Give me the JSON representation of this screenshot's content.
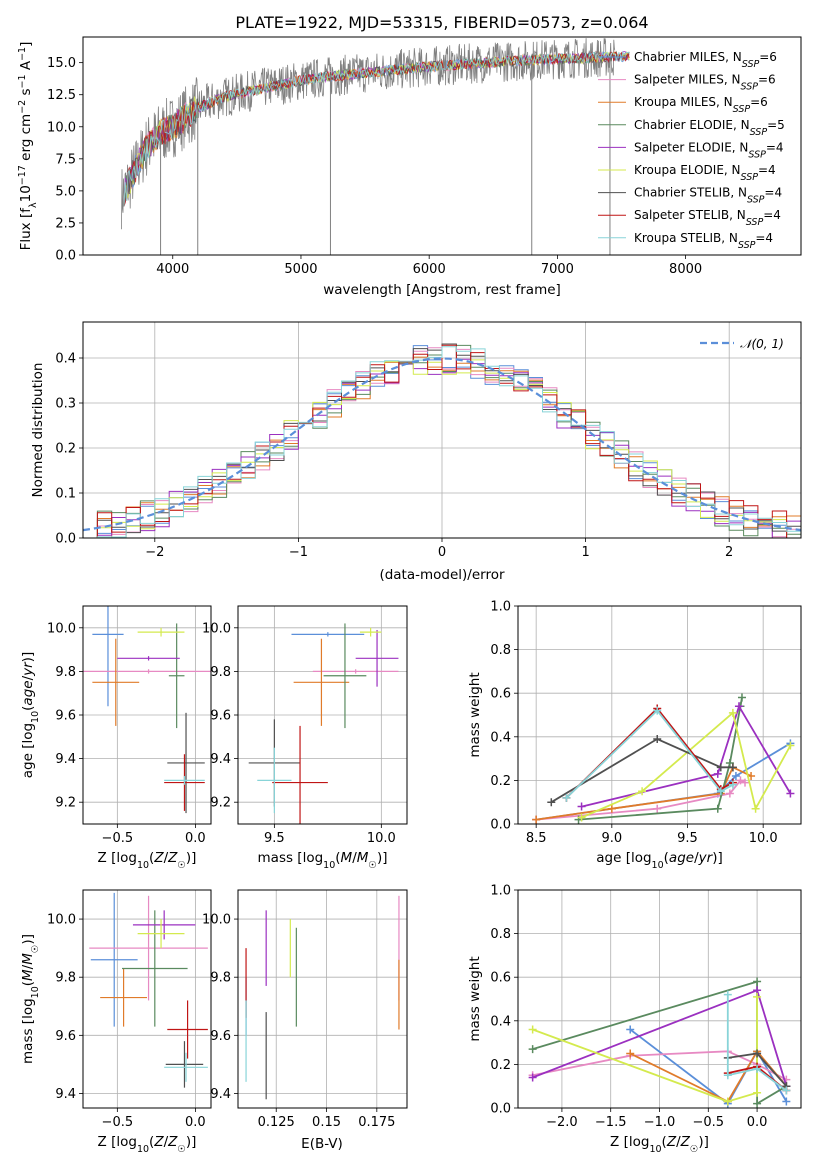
{
  "title": "PLATE=1922, MJD=53315, FIBERID=0573, z=0.064",
  "colors": {
    "Chabrier MILES": "#5b8fd9",
    "Salpeter MILES": "#e78ac3",
    "Kroupa MILES": "#e07b2a",
    "Chabrier ELODIE": "#5a8a5f",
    "Salpeter ELODIE": "#9b30c0",
    "Kroupa ELODIE": "#d4ea4e",
    "Chabrier STELIB": "#505050",
    "Salpeter STELIB": "#c01515",
    "Kroupa STELIB": "#88d4d8",
    "data": "#808080",
    "normal": "#5b8fd9"
  },
  "chart_data": [
    {
      "type": "line",
      "name": "spectrum",
      "title": "PLATE=1922, MJD=53315, FIBERID=0573, z=0.064",
      "xlabel": "wavelength [Angstrom, rest frame]",
      "ylabel_parts": [
        "Flux [f",
        "λ",
        "10",
        "−17",
        " erg cm",
        "−2",
        " s",
        "−1",
        " A",
        "−1",
        "]"
      ],
      "xlim": [
        3300,
        8900
      ],
      "ylim": [
        0,
        17
      ],
      "xticks": [
        4000,
        5000,
        6000,
        7000,
        8000
      ],
      "yticks": [
        0.0,
        2.5,
        5.0,
        7.5,
        10.0,
        12.5,
        15.0
      ],
      "legend_location": "right",
      "legend": [
        {
          "name": "Chabrier MILES",
          "nssp": "6"
        },
        {
          "name": "Salpeter MILES",
          "nssp": "6"
        },
        {
          "name": "Kroupa MILES",
          "nssp": "6"
        },
        {
          "name": "Chabrier ELODIE",
          "nssp": "5"
        },
        {
          "name": "Salpeter ELODIE",
          "nssp": "4"
        },
        {
          "name": "Kroupa ELODIE",
          "nssp": "4"
        },
        {
          "name": "Chabrier STELIB",
          "nssp": "4"
        },
        {
          "name": "Salpeter STELIB",
          "nssp": "4"
        },
        {
          "name": "Kroupa STELIB",
          "nssp": "4"
        }
      ],
      "continuum": {
        "x": [
          3600,
          3700,
          3800,
          3900,
          4000,
          4100,
          4200,
          4400,
          4600,
          4800,
          5000,
          5200,
          5500,
          5800,
          6000,
          6300,
          6600,
          7000,
          7300,
          7600
        ],
        "y": [
          4.5,
          6.5,
          8.5,
          9.5,
          10.0,
          10.8,
          11.5,
          12.3,
          12.8,
          13.2,
          13.6,
          13.9,
          14.2,
          14.5,
          14.7,
          14.9,
          15.1,
          15.3,
          15.4,
          15.5
        ]
      },
      "data_extent": [
        3600,
        7450
      ],
      "model_extent": [
        3620,
        7560
      ],
      "spikes": [
        {
          "x": 3905,
          "to": 0
        },
        {
          "x": 4195,
          "to": 0
        },
        {
          "x": 5230,
          "to": 0
        },
        {
          "x": 6800,
          "to": 0
        },
        {
          "x": 7410,
          "to": 0
        }
      ]
    },
    {
      "type": "histogram",
      "name": "residuals",
      "xlabel": "(data-model)/error",
      "ylabel": "Normed distribution",
      "xlim": [
        -2.5,
        2.5
      ],
      "ylim": [
        0,
        0.48
      ],
      "xticks": [
        -2,
        -1,
        0,
        1,
        2
      ],
      "xticklabels": [
        "−2",
        "−1",
        "0",
        "1",
        "2"
      ],
      "yticks": [
        0.0,
        0.1,
        0.2,
        0.3,
        0.4
      ],
      "legend_label": "𝒩(0, 1)",
      "legend_location": "top-right",
      "bin_width": 0.1,
      "normal_sigma": 1.0,
      "series_count": 9
    },
    {
      "type": "scatter",
      "name": "age-vs-Z",
      "xlabel": "Z [log10(Z/Z☉)]",
      "ylabel": "age  [log10(age/yr)]",
      "xlim": [
        -0.72,
        0.1
      ],
      "ylim": [
        9.1,
        10.1
      ],
      "xticks": [
        -0.5,
        0.0
      ],
      "yticks": [
        9.2,
        9.4,
        9.6,
        9.8,
        10.0
      ],
      "points": [
        {
          "series": "Chabrier MILES",
          "x": -0.56,
          "y": 9.97,
          "xerr": 0.1,
          "yerr": 0.33
        },
        {
          "series": "Salpeter MILES",
          "x": -0.3,
          "y": 9.8,
          "xerr": 0.42,
          "yerr": 0.01
        },
        {
          "series": "Kroupa MILES",
          "x": -0.51,
          "y": 9.75,
          "xerr": 0.15,
          "yerr": 0.2
        },
        {
          "series": "Chabrier ELODIE",
          "x": -0.12,
          "y": 9.78,
          "xerr": 0.05,
          "yerr": 0.24
        },
        {
          "series": "Salpeter ELODIE",
          "x": -0.3,
          "y": 9.86,
          "xerr": 0.2,
          "yerr": 0.01
        },
        {
          "series": "Kroupa ELODIE",
          "x": -0.22,
          "y": 9.98,
          "xerr": 0.15,
          "yerr": 0.02
        },
        {
          "series": "Chabrier STELIB",
          "x": -0.06,
          "y": 9.38,
          "xerr": 0.12,
          "yerr": 0.23
        },
        {
          "series": "Salpeter STELIB",
          "x": -0.07,
          "y": 9.29,
          "xerr": 0.13,
          "yerr": 0.13
        },
        {
          "series": "Kroupa STELIB",
          "x": -0.07,
          "y": 9.3,
          "xerr": 0.13,
          "yerr": 0.02
        }
      ]
    },
    {
      "type": "scatter",
      "name": "age-vs-mass",
      "xlabel": "mass [log10(M/M☉)]",
      "ylabel": "",
      "xlim": [
        9.33,
        10.12
      ],
      "ylim": [
        9.1,
        10.1
      ],
      "xticks": [
        9.5,
        10.0
      ],
      "yticks": [
        9.2,
        9.4,
        9.6,
        9.8,
        10.0
      ],
      "points": [
        {
          "series": "Chabrier MILES",
          "x": 9.75,
          "y": 9.97,
          "xerr": 0.17,
          "yerr": 0.01
        },
        {
          "series": "Salpeter MILES",
          "x": 9.88,
          "y": 9.8,
          "xerr": 0.2,
          "yerr": 0.01
        },
        {
          "series": "Kroupa MILES",
          "x": 9.72,
          "y": 9.75,
          "xerr": 0.13,
          "yerr": 0.2
        },
        {
          "series": "Chabrier ELODIE",
          "x": 9.83,
          "y": 9.78,
          "xerr": 0.1,
          "yerr": 0.24
        },
        {
          "series": "Salpeter ELODIE",
          "x": 9.98,
          "y": 9.86,
          "xerr": 0.1,
          "yerr": 0.13
        },
        {
          "series": "Kroupa ELODIE",
          "x": 9.95,
          "y": 9.98,
          "xerr": 0.05,
          "yerr": 0.02
        },
        {
          "series": "Chabrier STELIB",
          "x": 9.5,
          "y": 9.38,
          "xerr": 0.12,
          "yerr": 0.2
        },
        {
          "series": "Salpeter STELIB",
          "x": 9.62,
          "y": 9.29,
          "xerr": 0.13,
          "yerr": 0.26
        },
        {
          "series": "Kroupa STELIB",
          "x": 9.5,
          "y": 9.3,
          "xerr": 0.08,
          "yerr": 0.15
        }
      ]
    },
    {
      "type": "line",
      "name": "mass-weight-vs-age",
      "xlabel": "age  [log10(age/yr)]",
      "ylabel": "mass weight",
      "xlim": [
        8.38,
        10.25
      ],
      "ylim": [
        0,
        1.0
      ],
      "xticks": [
        8.5,
        9.0,
        9.5,
        10.0
      ],
      "yticks": [
        0.0,
        0.2,
        0.4,
        0.6,
        0.8,
        1.0
      ],
      "series": [
        {
          "name": "Chabrier MILES",
          "x": [
            8.5,
            9.7,
            9.82,
            10.18
          ],
          "y": [
            0.02,
            0.14,
            0.22,
            0.37
          ]
        },
        {
          "name": "Salpeter MILES",
          "x": [
            8.5,
            9.3,
            9.78,
            9.85,
            9.88
          ],
          "y": [
            0.02,
            0.07,
            0.14,
            0.2,
            0.19
          ]
        },
        {
          "name": "Kroupa MILES",
          "x": [
            8.5,
            9.0,
            9.72,
            9.8,
            9.92
          ],
          "y": [
            0.02,
            0.07,
            0.14,
            0.26,
            0.22
          ]
        },
        {
          "name": "Chabrier ELODIE",
          "x": [
            8.78,
            9.7,
            9.78,
            9.86,
            9.85
          ],
          "y": [
            0.02,
            0.07,
            0.28,
            0.58,
            0.54
          ]
        },
        {
          "name": "Salpeter ELODIE",
          "x": [
            8.8,
            9.7,
            9.84,
            10.18
          ],
          "y": [
            0.08,
            0.23,
            0.54,
            0.14
          ]
        },
        {
          "name": "Kroupa ELODIE",
          "x": [
            8.8,
            9.2,
            9.8,
            9.95,
            10.18
          ],
          "y": [
            0.03,
            0.15,
            0.51,
            0.07,
            0.36
          ]
        },
        {
          "name": "Chabrier STELIB",
          "x": [
            8.6,
            9.3,
            9.72,
            9.8
          ],
          "y": [
            0.1,
            0.39,
            0.26,
            0.26
          ]
        },
        {
          "name": "Salpeter STELIB",
          "x": [
            8.7,
            9.3,
            9.72,
            9.8
          ],
          "y": [
            0.12,
            0.53,
            0.16,
            0.19
          ]
        },
        {
          "name": "Kroupa STELIB",
          "x": [
            8.7,
            9.3,
            9.72,
            9.8
          ],
          "y": [
            0.12,
            0.52,
            0.15,
            0.18
          ]
        }
      ]
    },
    {
      "type": "scatter",
      "name": "mass-vs-Z",
      "xlabel": "Z [log10(Z/Z☉)]",
      "ylabel": "mass [log10(M/M☉)]",
      "xlim": [
        -0.72,
        0.1
      ],
      "ylim": [
        9.35,
        10.1
      ],
      "xticks": [
        -0.5,
        0.0
      ],
      "yticks": [
        9.4,
        9.6,
        9.8,
        10.0
      ],
      "points": [
        {
          "series": "Chabrier MILES",
          "x": -0.52,
          "y": 9.86,
          "xerr": 0.15,
          "yerr": 0.23
        },
        {
          "series": "Salpeter MILES",
          "x": -0.3,
          "y": 9.9,
          "xerr": 0.38,
          "yerr": 0.18
        },
        {
          "series": "Kroupa MILES",
          "x": -0.46,
          "y": 9.73,
          "xerr": 0.15,
          "yerr": 0.1
        },
        {
          "series": "Chabrier ELODIE",
          "x": -0.26,
          "y": 9.83,
          "xerr": 0.21,
          "yerr": 0.2
        },
        {
          "series": "Salpeter ELODIE",
          "x": -0.2,
          "y": 9.98,
          "xerr": 0.2,
          "yerr": 0.05
        },
        {
          "series": "Kroupa ELODIE",
          "x": -0.22,
          "y": 9.95,
          "xerr": 0.15,
          "yerr": 0.05
        },
        {
          "series": "Chabrier STELIB",
          "x": -0.07,
          "y": 9.5,
          "xerr": 0.12,
          "yerr": 0.08
        },
        {
          "series": "Salpeter STELIB",
          "x": -0.05,
          "y": 9.62,
          "xerr": 0.13,
          "yerr": 0.1
        },
        {
          "series": "Kroupa STELIB",
          "x": -0.06,
          "y": 9.49,
          "xerr": 0.14,
          "yerr": 0.05
        }
      ]
    },
    {
      "type": "scatter",
      "name": "mass-vs-ebv",
      "xlabel": "E(B-V)",
      "ylabel": "",
      "xlim": [
        0.106,
        0.19
      ],
      "ylim": [
        9.35,
        10.1
      ],
      "xticks": [
        0.125,
        0.15,
        0.175
      ],
      "yticks": [
        9.4,
        9.6,
        9.8,
        10.0
      ],
      "points": [
        {
          "series": "Chabrier MILES",
          "x": 0.11,
          "y": 9.7,
          "xerr": 0.0,
          "yerr": 0.1
        },
        {
          "series": "Salpeter MILES",
          "x": 0.186,
          "y": 9.9,
          "xerr": 0.0,
          "yerr": 0.18
        },
        {
          "series": "Kroupa MILES",
          "x": 0.186,
          "y": 9.74,
          "xerr": 0.0,
          "yerr": 0.12
        },
        {
          "series": "Chabrier ELODIE",
          "x": 0.135,
          "y": 9.8,
          "xerr": 0.0,
          "yerr": 0.17
        },
        {
          "series": "Salpeter ELODIE",
          "x": 0.12,
          "y": 9.9,
          "xerr": 0.0,
          "yerr": 0.13
        },
        {
          "series": "Kroupa ELODIE",
          "x": 0.132,
          "y": 9.9,
          "xerr": 0.0,
          "yerr": 0.1
        },
        {
          "series": "Chabrier STELIB",
          "x": 0.12,
          "y": 9.53,
          "xerr": 0.0,
          "yerr": 0.15
        },
        {
          "series": "Salpeter STELIB",
          "x": 0.11,
          "y": 9.78,
          "xerr": 0.0,
          "yerr": 0.12
        },
        {
          "series": "Kroupa STELIB",
          "x": 0.11,
          "y": 9.58,
          "xerr": 0.0,
          "yerr": 0.14
        }
      ]
    },
    {
      "type": "line",
      "name": "mass-weight-vs-Z",
      "xlabel": "Z [log10(Z/Z☉)]",
      "ylabel": "mass weight",
      "xlim": [
        -2.45,
        0.45
      ],
      "ylim": [
        0,
        1.0
      ],
      "xticks": [
        -2.0,
        -1.5,
        -1.0,
        -0.5,
        0.0
      ],
      "xticklabels": [
        "−2.0",
        "−1.5",
        "−1.0",
        "−0.5",
        "0.0"
      ],
      "yticks": [
        0.0,
        0.2,
        0.4,
        0.6,
        0.8,
        1.0
      ],
      "series": [
        {
          "name": "Chabrier MILES",
          "x": [
            -1.3,
            -0.3,
            0.0,
            0.3
          ],
          "y": [
            0.36,
            0.02,
            0.26,
            0.03
          ]
        },
        {
          "name": "Salpeter MILES",
          "x": [
            -2.3,
            -1.3,
            -0.3,
            0.0,
            0.3
          ],
          "y": [
            0.15,
            0.24,
            0.26,
            0.2,
            0.13
          ]
        },
        {
          "name": "Kroupa MILES",
          "x": [
            -1.3,
            -0.3,
            0.0,
            0.3
          ],
          "y": [
            0.25,
            0.03,
            0.26,
            0.1
          ]
        },
        {
          "name": "Chabrier ELODIE",
          "x": [
            -2.3,
            0.0,
            0.0,
            0.3
          ],
          "y": [
            0.27,
            0.58,
            0.02,
            0.1
          ]
        },
        {
          "name": "Salpeter ELODIE",
          "x": [
            -2.3,
            0.0,
            0.3
          ],
          "y": [
            0.14,
            0.54,
            0.1
          ]
        },
        {
          "name": "Kroupa ELODIE",
          "x": [
            -2.3,
            -0.3,
            0.0,
            0.0
          ],
          "y": [
            0.36,
            0.03,
            0.07,
            0.51
          ]
        },
        {
          "name": "Chabrier STELIB",
          "x": [
            -0.3,
            0.0,
            0.3
          ],
          "y": [
            0.23,
            0.25,
            0.1
          ]
        },
        {
          "name": "Salpeter STELIB",
          "x": [
            -0.3,
            0.0,
            0.3
          ],
          "y": [
            0.16,
            0.19,
            0.08
          ]
        },
        {
          "name": "Kroupa STELIB",
          "x": [
            -0.3,
            -0.3,
            0.0,
            0.3
          ],
          "y": [
            0.52,
            0.15,
            0.18,
            0.08
          ]
        }
      ]
    }
  ]
}
